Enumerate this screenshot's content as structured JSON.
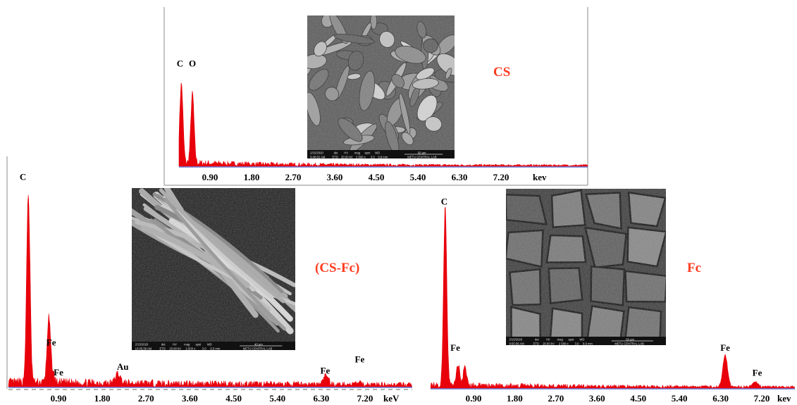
{
  "chart_data": [
    {
      "type": "area",
      "title": "CS",
      "unit": "kev",
      "xlim": [
        0,
        8.1
      ],
      "ylim": [
        0,
        1
      ],
      "x_ticks": [
        0.9,
        1.8,
        2.7,
        3.6,
        4.5,
        5.4,
        6.3,
        7.2
      ],
      "tick_labels": [
        "0.90",
        "1.80",
        "2.70",
        "3.60",
        "4.50",
        "5.40",
        "6.30",
        "7.20"
      ],
      "peaks": [
        {
          "label": "C",
          "x": 0.28,
          "height": 0.98
        },
        {
          "label": "O",
          "x": 0.52,
          "height": 0.85
        }
      ],
      "peak_labels": [
        {
          "text": "C",
          "x": 0.25,
          "y": 1.22
        },
        {
          "text": "O",
          "x": 0.52,
          "y": 1.22
        }
      ],
      "noise_level": 0.06,
      "noise_decay": 0.45
    },
    {
      "type": "area",
      "title": "(CS-Fc)",
      "unit": "keV",
      "xlim": [
        0,
        8.1
      ],
      "ylim": [
        0,
        1
      ],
      "x_ticks": [
        0.9,
        1.8,
        2.7,
        3.6,
        4.5,
        5.4,
        6.3,
        7.2
      ],
      "tick_labels": [
        "0.90",
        "1.80",
        "2.70",
        "3.60",
        "4.50",
        "5.40",
        "6.30",
        "7.20"
      ],
      "peaks": [
        {
          "label": "C",
          "x": 0.28,
          "height": 1.0
        },
        {
          "label": "Fe",
          "x": 0.7,
          "height": 0.34
        },
        {
          "label": "Fe",
          "x": 0.78,
          "height": 0.05
        },
        {
          "label": "Au",
          "x": 2.12,
          "height": 0.05
        },
        {
          "label": "Fe",
          "x": 6.4,
          "height": 0.05
        },
        {
          "label": "Fe",
          "x": 7.06,
          "height": 0.01
        }
      ],
      "peak_labels": [
        {
          "text": "C",
          "x": 0.17,
          "y": 1.1
        },
        {
          "text": "Fe",
          "x": 0.75,
          "y": 0.22
        },
        {
          "text": "Fe",
          "x": 0.9,
          "y": 0.06
        },
        {
          "text": "Au",
          "x": 2.22,
          "y": 0.09
        },
        {
          "text": "Fe",
          "x": 6.38,
          "y": 0.07
        },
        {
          "text": "Fe",
          "x": 7.09,
          "y": 0.13
        }
      ],
      "noise_level": 0.035,
      "noise_decay": 0.15
    },
    {
      "type": "area",
      "title": "Fc",
      "unit": "kev",
      "xlim": [
        0,
        8.1
      ],
      "ylim": [
        0,
        1
      ],
      "x_ticks": [
        0.9,
        1.8,
        2.7,
        3.6,
        4.5,
        5.4,
        6.3,
        7.2
      ],
      "tick_labels": [
        "0.90",
        "1.80",
        "2.70",
        "3.60",
        "4.50",
        "5.40",
        "6.30",
        "7.20"
      ],
      "peaks": [
        {
          "label": "C",
          "x": 0.28,
          "height": 1.0
        },
        {
          "label": "Fe",
          "x": 0.56,
          "height": 0.12
        },
        {
          "label": "Fe",
          "x": 0.71,
          "height": 0.1
        },
        {
          "label": "Fe",
          "x": 6.4,
          "height": 0.18
        },
        {
          "label": "Fe",
          "x": 7.06,
          "height": 0.03
        }
      ],
      "peak_labels": [
        {
          "text": "C",
          "x": 0.26,
          "y": 1.03
        },
        {
          "text": "Fe",
          "x": 0.5,
          "y": 0.21
        },
        {
          "text": "Fe",
          "x": 6.4,
          "y": 0.21
        },
        {
          "text": "Fe",
          "x": 7.1,
          "y": 0.07
        }
      ],
      "noise_level": 0.025,
      "noise_decay": 0.25
    }
  ],
  "micrographs": [
    {
      "texture": "fibrous-flakes",
      "meta_labels": [
        "2/15/2020",
        "det",
        "HV",
        "mag",
        "spot",
        "WD",
        "50 µm",
        "9:46:52 AM",
        "ETD",
        "20.00 kV",
        "2 500 x",
        "3.0",
        "9.8 mm",
        "METU CENTRAL LAB"
      ]
    },
    {
      "texture": "fiber-bundle",
      "meta_labels": [
        "2/15/2020",
        "det",
        "HV",
        "mag",
        "spot",
        "WD",
        "40 µm",
        "10:05:39 AM",
        "ETD",
        "20.00 kV",
        "2 500 x",
        "3.0",
        "9.5 mm",
        "METU CENTRAL LAB"
      ]
    },
    {
      "texture": "cracked-plates",
      "meta_labels": [
        "2/15/2020",
        "det",
        "HV",
        "mag",
        "spot",
        "WD",
        "50 µm",
        "9:55:56 AM",
        "ETD",
        "20.00 kV",
        "2 500 x",
        "3.0",
        "9.9 mm",
        "METU CENTRAL LAB"
      ]
    }
  ],
  "colors": {
    "spectrum": "#e8000b",
    "baseline": "#3c55c8",
    "title": "#ff3b1f",
    "frame": "#8a8a8a"
  }
}
